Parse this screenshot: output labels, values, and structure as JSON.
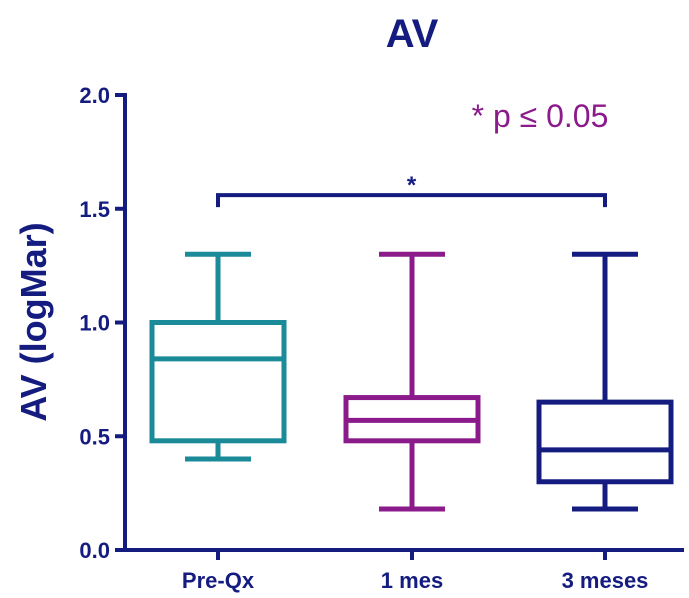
{
  "chart_data": {
    "type": "box",
    "title": "AV",
    "xlabel": "",
    "ylabel": "AV (logMar)",
    "ylim": [
      0,
      2.0
    ],
    "yticks": [
      "0.0",
      "0.5",
      "1.0",
      "1.5",
      "2.0"
    ],
    "ytick_values": [
      0,
      0.5,
      1.0,
      1.5,
      2.0
    ],
    "categories": [
      "Pre-Qx",
      "1 mes",
      "3 meses"
    ],
    "boxes": [
      {
        "category": "Pre-Qx",
        "min": 0.4,
        "q1": 0.48,
        "median": 0.84,
        "q3": 1.0,
        "max": 1.3,
        "color": "#1b8a99"
      },
      {
        "category": "1 mes",
        "min": 0.18,
        "q1": 0.48,
        "median": 0.57,
        "q3": 0.67,
        "max": 1.3,
        "color": "#8b1a8b"
      },
      {
        "category": "3 meses",
        "min": 0.18,
        "q1": 0.3,
        "median": 0.44,
        "q3": 0.65,
        "max": 1.3,
        "color": "#141c80"
      }
    ],
    "annotation": {
      "bracket_from": "Pre-Qx",
      "bracket_to": "3 meses",
      "y": 1.56,
      "label": "*",
      "color": "#141c80"
    },
    "legend_note": {
      "text": "* p ≤ 0.05",
      "color": "#8b1a8b",
      "position": "top-right"
    },
    "grid": false,
    "axis_color": "#141c80"
  }
}
